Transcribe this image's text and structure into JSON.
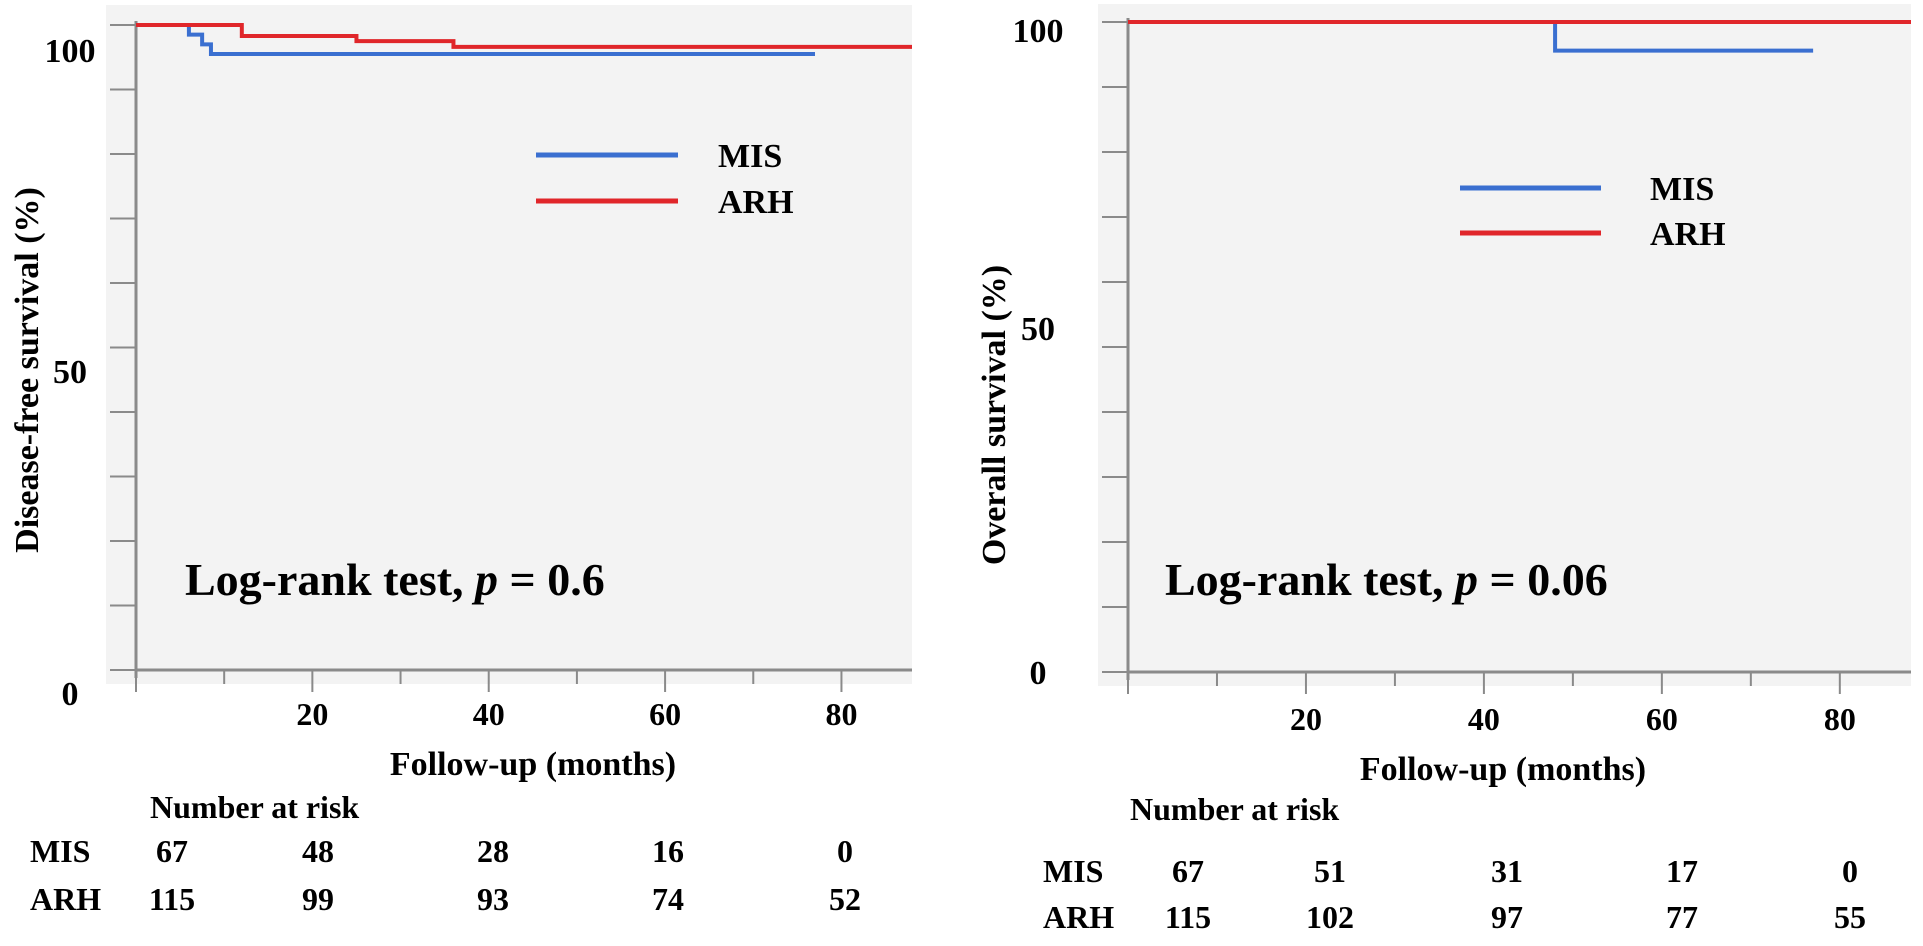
{
  "chart_data": [
    {
      "type": "line",
      "subtype": "kaplan-meier",
      "ylabel": "Disease-free survival (%)",
      "xlabel": "Follow-up (months)",
      "xlim": [
        0,
        88
      ],
      "ylim": [
        0,
        100
      ],
      "y_tick_labels": [
        0,
        50,
        100
      ],
      "x_tick_labels": [
        20,
        40,
        60,
        80
      ],
      "legend": [
        "MIS",
        "ARH"
      ],
      "annotation": {
        "prefix": "Log-rank test, ",
        "p_symbol": "p",
        "suffix": " = 0.6"
      },
      "series": [
        {
          "name": "MIS",
          "color": "#3a6fd0",
          "steps": [
            [
              0,
              100
            ],
            [
              6,
              98.5
            ],
            [
              7.5,
              97.0
            ],
            [
              8.5,
              95.5
            ],
            [
              77,
              95.5
            ]
          ]
        },
        {
          "name": "ARH",
          "color": "#e0262a",
          "steps": [
            [
              0,
              100
            ],
            [
              12,
              98.3
            ],
            [
              25,
              97.5
            ],
            [
              36,
              96.6
            ],
            [
              88,
              96.6
            ]
          ]
        }
      ],
      "risk_table": {
        "title": "Number at risk",
        "rows": [
          {
            "label": "MIS",
            "values": [
              67,
              48,
              28,
              16,
              0
            ]
          },
          {
            "label": "ARH",
            "values": [
              115,
              99,
              93,
              74,
              52
            ]
          }
        ]
      }
    },
    {
      "type": "line",
      "subtype": "kaplan-meier",
      "ylabel": "Overall survival (%)",
      "xlabel": "Follow-up (months)",
      "xlim": [
        0,
        88
      ],
      "ylim": [
        0,
        100
      ],
      "y_tick_labels": [
        0,
        50,
        100
      ],
      "x_tick_labels": [
        20,
        40,
        60,
        80
      ],
      "legend": [
        "MIS",
        "ARH"
      ],
      "annotation": {
        "prefix": "Log-rank test, ",
        "p_symbol": "p",
        "suffix": " = 0.06"
      },
      "series": [
        {
          "name": "MIS",
          "color": "#3a6fd0",
          "steps": [
            [
              0,
              100
            ],
            [
              48,
              95.6
            ],
            [
              77,
              95.6
            ]
          ]
        },
        {
          "name": "ARH",
          "color": "#e0262a",
          "steps": [
            [
              0,
              100
            ],
            [
              88,
              100
            ]
          ]
        }
      ],
      "risk_table": {
        "title": "Number at risk",
        "rows": [
          {
            "label": "MIS",
            "values": [
              67,
              51,
              31,
              17,
              0
            ]
          },
          {
            "label": "ARH",
            "values": [
              115,
              102,
              97,
              77,
              55
            ]
          }
        ]
      }
    }
  ]
}
